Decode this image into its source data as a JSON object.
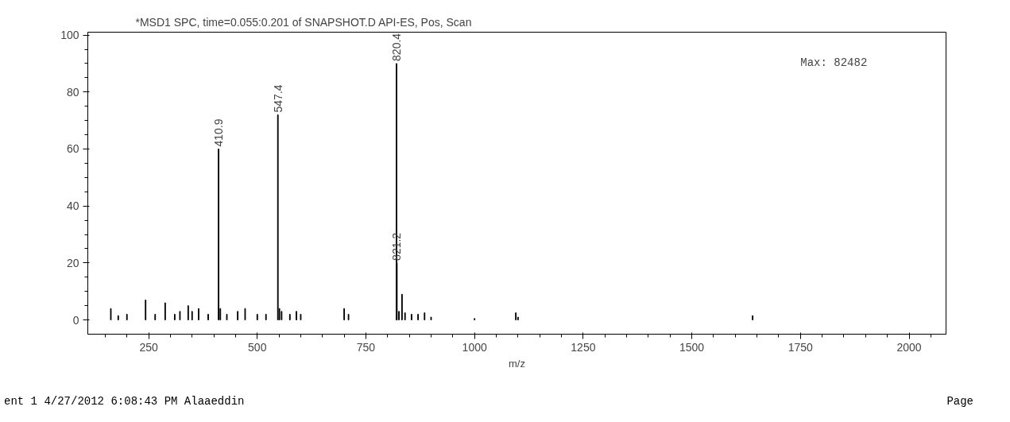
{
  "chart_data": {
    "type": "bar",
    "title": "*MSD1 SPC, time=0.055:0.201 of SNAPSHOT.D    API-ES, Pos, Scan",
    "xlabel": "m/z",
    "x": [
      163,
      180,
      200,
      243,
      265,
      288,
      310,
      322,
      341,
      350,
      365,
      387,
      410.9,
      415,
      430,
      455,
      472,
      500,
      520,
      547.4,
      551,
      556,
      575,
      590,
      600,
      700,
      710,
      820.4,
      821.2,
      826,
      833,
      840,
      855,
      870,
      885,
      900,
      1000,
      1095,
      1100,
      1640
    ],
    "series": [
      {
        "color": "#000000",
        "values": [
          4,
          1.5,
          2,
          7,
          2,
          6,
          2,
          3,
          5,
          3,
          4,
          2,
          60,
          4,
          2,
          3,
          4,
          2,
          2,
          72,
          4,
          3,
          2,
          3,
          2,
          4,
          2,
          90,
          20,
          3,
          9,
          2.5,
          2,
          2,
          2.5,
          1,
          0.5,
          2.5,
          1,
          1.5
        ]
      }
    ],
    "xlim": [
      110,
      2085
    ],
    "xticks": [
      250,
      500,
      750,
      1000,
      1250,
      1500,
      1750,
      2000
    ],
    "ylim": [
      -5,
      101
    ],
    "yticks": [
      0,
      20,
      40,
      60,
      80,
      100
    ],
    "grid": false,
    "annotations": [
      {
        "text": "410.9",
        "x": 410.9,
        "y": 60
      },
      {
        "text": "547.4",
        "x": 547.4,
        "y": 72
      },
      {
        "text": "820.4",
        "x": 820.4,
        "y": 90
      },
      {
        "text": "821.2",
        "x": 821.2,
        "y": 20
      },
      "Max: 82482",
      "ent 1 4/27/2012 6:08:43 PM Alaaeddin",
      "Page"
    ]
  }
}
